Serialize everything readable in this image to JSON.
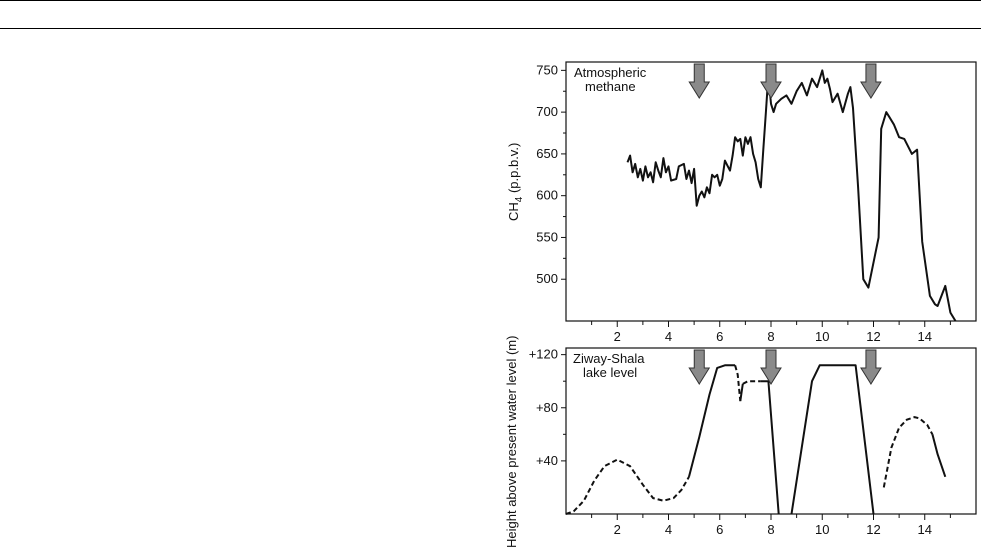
{
  "chart_data": [
    {
      "type": "line",
      "title": "",
      "ylabel": "CH",
      "ylabel_sub": "4",
      "ylabel_rest": " (p.p.b.v.)",
      "annotation": [
        "Atmospheric",
        "methane"
      ],
      "xlim": [
        0,
        16
      ],
      "ylim": [
        450,
        760
      ],
      "xticks": [
        2,
        4,
        6,
        8,
        10,
        12,
        14
      ],
      "yticks": [
        500,
        550,
        600,
        650,
        700,
        750
      ],
      "arrows_x": [
        5.2,
        8.0,
        11.9
      ],
      "series": [
        {
          "style": "solid",
          "points": [
            [
              2.4,
              640
            ],
            [
              2.5,
              648
            ],
            [
              2.6,
              628
            ],
            [
              2.7,
              638
            ],
            [
              2.8,
              622
            ],
            [
              2.9,
              632
            ],
            [
              3.0,
              618
            ],
            [
              3.1,
              635
            ],
            [
              3.2,
              622
            ],
            [
              3.3,
              628
            ],
            [
              3.4,
              616
            ],
            [
              3.5,
              640
            ],
            [
              3.6,
              630
            ],
            [
              3.7,
              622
            ],
            [
              3.8,
              645
            ],
            [
              3.9,
              628
            ],
            [
              4.0,
              635
            ],
            [
              4.1,
              618
            ],
            [
              4.3,
              620
            ],
            [
              4.4,
              635
            ],
            [
              4.6,
              638
            ],
            [
              4.7,
              620
            ],
            [
              4.8,
              630
            ],
            [
              4.9,
              615
            ],
            [
              5.0,
              632
            ],
            [
              5.1,
              588
            ],
            [
              5.2,
              600
            ],
            [
              5.3,
              605
            ],
            [
              5.4,
              598
            ],
            [
              5.5,
              610
            ],
            [
              5.6,
              603
            ],
            [
              5.7,
              625
            ],
            [
              5.8,
              622
            ],
            [
              5.9,
              625
            ],
            [
              6.0,
              612
            ],
            [
              6.1,
              620
            ],
            [
              6.2,
              642
            ],
            [
              6.3,
              636
            ],
            [
              6.4,
              630
            ],
            [
              6.5,
              648
            ],
            [
              6.6,
              670
            ],
            [
              6.7,
              665
            ],
            [
              6.8,
              668
            ],
            [
              6.9,
              648
            ],
            [
              7.0,
              670
            ],
            [
              7.1,
              662
            ],
            [
              7.2,
              670
            ],
            [
              7.3,
              650
            ],
            [
              7.4,
              640
            ],
            [
              7.5,
              620
            ],
            [
              7.6,
              610
            ],
            [
              7.7,
              655
            ],
            [
              7.8,
              700
            ],
            [
              7.9,
              745
            ],
            [
              8.0,
              710
            ],
            [
              8.1,
              700
            ],
            [
              8.2,
              710
            ],
            [
              8.4,
              716
            ],
            [
              8.6,
              720
            ],
            [
              8.8,
              710
            ],
            [
              9.0,
              725
            ],
            [
              9.2,
              735
            ],
            [
              9.4,
              720
            ],
            [
              9.6,
              740
            ],
            [
              9.8,
              730
            ],
            [
              10.0,
              750
            ],
            [
              10.1,
              735
            ],
            [
              10.2,
              740
            ],
            [
              10.3,
              728
            ],
            [
              10.4,
              712
            ],
            [
              10.6,
              722
            ],
            [
              10.8,
              700
            ],
            [
              11.0,
              722
            ],
            [
              11.1,
              730
            ],
            [
              11.2,
              705
            ],
            [
              11.4,
              610
            ],
            [
              11.6,
              500
            ],
            [
              11.8,
              490
            ],
            [
              12.2,
              550
            ],
            [
              12.3,
              680
            ],
            [
              12.5,
              700
            ],
            [
              12.6,
              695
            ],
            [
              12.8,
              685
            ],
            [
              13.0,
              670
            ],
            [
              13.2,
              668
            ],
            [
              13.5,
              650
            ],
            [
              13.7,
              655
            ],
            [
              13.9,
              545
            ],
            [
              14.2,
              480
            ],
            [
              14.4,
              470
            ],
            [
              14.5,
              468
            ],
            [
              14.8,
              492
            ],
            [
              15.0,
              460
            ],
            [
              15.2,
              450
            ]
          ]
        }
      ]
    },
    {
      "type": "line",
      "title": "",
      "ylabel": "Height above present water level (m)",
      "annotation": [
        "Ziway-Shala",
        "lake level"
      ],
      "xlim": [
        0,
        16
      ],
      "ylim": [
        0,
        125
      ],
      "xticks": [
        2,
        4,
        6,
        8,
        10,
        12,
        14
      ],
      "yticks": [
        40,
        80,
        120
      ],
      "ytick_labels": [
        "+40",
        "+80",
        "+120"
      ],
      "arrows_x": [
        5.2,
        8.0,
        11.9
      ],
      "series": [
        {
          "style": "dashed",
          "points": [
            [
              0.0,
              0
            ],
            [
              0.3,
              2
            ],
            [
              0.7,
              10
            ],
            [
              1.1,
              25
            ],
            [
              1.5,
              36
            ],
            [
              2.0,
              41
            ],
            [
              2.5,
              36
            ],
            [
              3.0,
              22
            ],
            [
              3.4,
              12
            ],
            [
              3.8,
              10
            ],
            [
              4.2,
              12
            ],
            [
              4.5,
              18
            ],
            [
              4.8,
              28
            ]
          ]
        },
        {
          "style": "solid",
          "points": [
            [
              4.8,
              28
            ],
            [
              5.2,
              58
            ],
            [
              5.6,
              90
            ],
            [
              5.9,
              110
            ],
            [
              6.2,
              112
            ],
            [
              6.6,
              112
            ]
          ]
        },
        {
          "style": "dashed",
          "points": [
            [
              6.6,
              112
            ],
            [
              6.7,
              105
            ],
            [
              6.8,
              85
            ]
          ]
        },
        {
          "style": "solid",
          "points": [
            [
              6.8,
              85
            ],
            [
              6.9,
              98
            ]
          ]
        },
        {
          "style": "dashed",
          "points": [
            [
              6.9,
              98
            ],
            [
              7.1,
              100
            ],
            [
              7.4,
              100
            ],
            [
              7.6,
              100
            ]
          ]
        },
        {
          "style": "solid",
          "points": [
            [
              7.6,
              100
            ],
            [
              7.9,
              100
            ],
            [
              8.3,
              0
            ]
          ]
        },
        {
          "style": "solid",
          "points": [
            [
              8.8,
              0
            ],
            [
              9.6,
              100
            ],
            [
              9.9,
              112
            ],
            [
              10.4,
              112
            ],
            [
              11.0,
              112
            ],
            [
              11.3,
              112
            ],
            [
              12.0,
              0
            ]
          ]
        },
        {
          "style": "dashed",
          "points": [
            [
              12.4,
              20
            ],
            [
              12.7,
              50
            ],
            [
              13.0,
              65
            ],
            [
              13.3,
              71
            ],
            [
              13.6,
              73
            ],
            [
              13.8,
              72
            ],
            [
              14.1,
              67
            ],
            [
              14.3,
              60
            ]
          ]
        },
        {
          "style": "solid",
          "points": [
            [
              14.3,
              60
            ],
            [
              14.5,
              45
            ],
            [
              14.8,
              28
            ]
          ]
        }
      ]
    }
  ]
}
